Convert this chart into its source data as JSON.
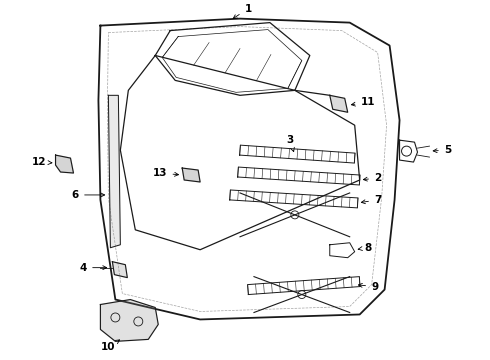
{
  "background_color": "#ffffff",
  "line_color": "#1a1a1a",
  "label_color": "#000000",
  "label_fontsize": 7.5,
  "figsize": [
    4.9,
    3.6
  ],
  "dpi": 100
}
